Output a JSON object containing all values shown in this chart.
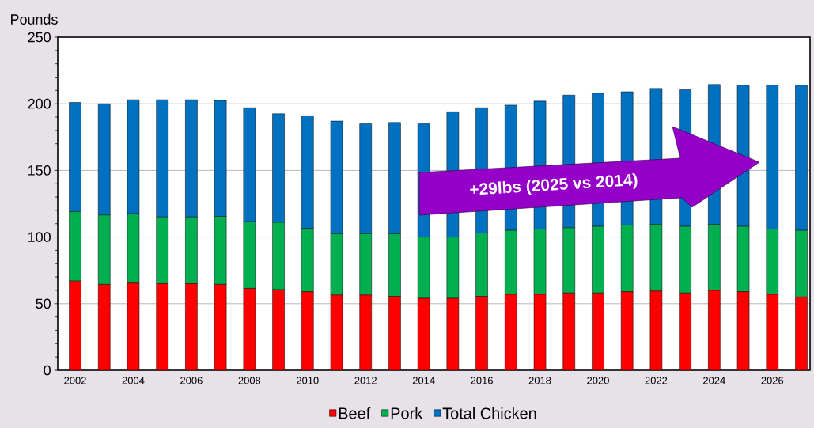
{
  "chart_data": {
    "type": "bar",
    "stacked": true,
    "ylabel": "Pounds",
    "categories": [
      "2002",
      null,
      "2004",
      null,
      "2006",
      null,
      "2008",
      null,
      "2010",
      null,
      "2012",
      null,
      "2014",
      null,
      "2016",
      null,
      "2018",
      null,
      "2020",
      null,
      "2022",
      null,
      "2024",
      null,
      "2026",
      null
    ],
    "series": [
      {
        "name": "Beef",
        "color": "#ff0000",
        "values": [
          67,
          64.5,
          65.5,
          65,
          65,
          64.5,
          61.5,
          60.5,
          59,
          56.5,
          56.5,
          55.5,
          54,
          54,
          55.5,
          57,
          57,
          58,
          58,
          59,
          59.5,
          58,
          60,
          59,
          57,
          55
        ]
      },
      {
        "name": "Pork",
        "color": "#00b050",
        "values": [
          52,
          52,
          52,
          50,
          50,
          51,
          50,
          50.5,
          47.5,
          46,
          46,
          47,
          46,
          46,
          47.5,
          48,
          49,
          49,
          50,
          50,
          50,
          50,
          49.5,
          49,
          49,
          50
        ]
      },
      {
        "name": "Total Chicken",
        "color": "#0070c0",
        "values": [
          82,
          83.5,
          85.5,
          88,
          88,
          87,
          85.5,
          81.5,
          84.5,
          84.5,
          82.5,
          83.5,
          85,
          94,
          94,
          94,
          96,
          99.5,
          100,
          100,
          102,
          102.5,
          105,
          106,
          108,
          109
        ]
      }
    ],
    "ylim": [
      0,
      250
    ],
    "yticks": [
      0,
      50,
      100,
      150,
      200,
      250
    ],
    "grid": "y",
    "legend": "bottom",
    "annotations": [
      "+29lbs (2025 vs 2014)"
    ]
  }
}
